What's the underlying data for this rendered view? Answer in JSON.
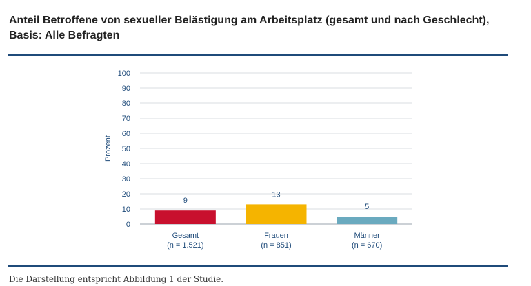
{
  "header": {
    "title_line1": "Anteil Betroffene von sexueller Belästigung am Arbeitsplatz (gesamt und nach Geschlecht),",
    "title_line2": "Basis: Alle Befragten"
  },
  "footer": {
    "note": "Die Darstellung entspricht Abbildung 1 der Studie."
  },
  "chart_data": {
    "type": "bar",
    "title": "Anteil Betroffene von sexueller Belästigung am Arbeitsplatz (gesamt und nach Geschlecht), Basis: Alle Befragten",
    "ylabel": "Prozent",
    "xlabel": "",
    "ylim": [
      0,
      100
    ],
    "yticks": [
      0,
      10,
      20,
      30,
      40,
      50,
      60,
      70,
      80,
      90,
      100
    ],
    "grid": true,
    "categories": [
      "Gesamt",
      "Frauen",
      "Männer"
    ],
    "category_sublabels": [
      "(n = 1.521)",
      "(n = 851)",
      "(n = 670)"
    ],
    "values": [
      9,
      13,
      5
    ],
    "data_labels": [
      "9",
      "13",
      "5"
    ],
    "colors": [
      "#c8102e",
      "#f5b400",
      "#6aaabf"
    ],
    "axis_color": "#1f4b7a",
    "grid_color": "#d9dde2"
  }
}
